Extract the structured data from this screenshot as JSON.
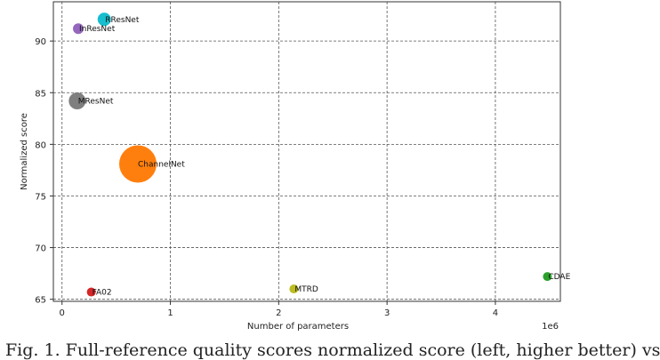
{
  "chart_data": {
    "type": "scatter",
    "xlabel": "Number of parameters",
    "ylabel": "Normalized score",
    "x_offset_label": "1e6",
    "xlim": [
      -80000,
      4600000
    ],
    "ylim": [
      64.8,
      93.8
    ],
    "xticks": [
      0,
      1000000,
      2000000,
      3000000,
      4000000
    ],
    "xtick_labels": [
      "0",
      "1",
      "2",
      "3",
      "4"
    ],
    "yticks": [
      65,
      70,
      75,
      80,
      85,
      90
    ],
    "ytick_labels": [
      "65",
      "70",
      "75",
      "80",
      "85",
      "90"
    ],
    "grid": true,
    "points": [
      {
        "label": "RResNet",
        "x": 390000,
        "y": 92.1,
        "size": 13,
        "color": "#17becf"
      },
      {
        "label": "InResNet",
        "x": 150000,
        "y": 91.2,
        "size": 10,
        "color": "#9467bd"
      },
      {
        "label": "MResNet",
        "x": 140000,
        "y": 84.2,
        "size": 17,
        "color": "#7f7f7f"
      },
      {
        "label": "ChannelNet",
        "x": 700000,
        "y": 78.1,
        "size": 40,
        "color": "#ff7f0e"
      },
      {
        "label": "CDAE",
        "x": 4480000,
        "y": 67.2,
        "size": 8,
        "color": "#2ca02c"
      },
      {
        "label": "MTRD",
        "x": 2140000,
        "y": 66.0,
        "size": 8,
        "color": "#bcbd22"
      },
      {
        "label": "FA02",
        "x": 270000,
        "y": 65.7,
        "size": 8,
        "color": "#d62728"
      }
    ]
  },
  "caption": "Fig. 1. Full-reference quality scores normalized score (left, higher better) vs"
}
